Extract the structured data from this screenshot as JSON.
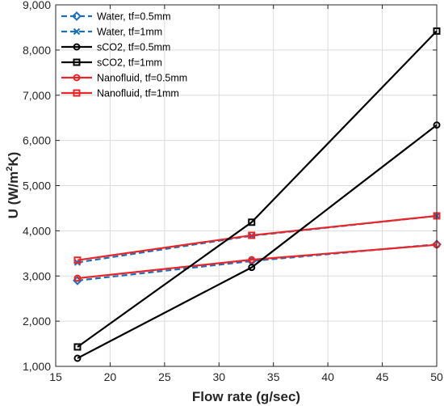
{
  "chart_data": {
    "type": "line",
    "xlabel": "Flow rate (g/sec)",
    "ylabel_base": "U (W/m",
    "ylabel_sup": "2",
    "ylabel_tail": "K)",
    "xlim": [
      15,
      50
    ],
    "ylim": [
      1000,
      9000
    ],
    "xticks": [
      15,
      20,
      25,
      30,
      35,
      40,
      45,
      50
    ],
    "xtick_labels": [
      "15",
      "20",
      "25",
      "30",
      "35",
      "40",
      "45",
      "50"
    ],
    "yticks": [
      1000,
      2000,
      3000,
      4000,
      5000,
      6000,
      7000,
      8000,
      9000
    ],
    "ytick_labels": [
      "1,000",
      "2,000",
      "3,000",
      "4,000",
      "5,000",
      "6,000",
      "7,000",
      "8,000",
      "9,000"
    ],
    "grid": true,
    "legend_position": "top-left",
    "series": [
      {
        "name": "Water, tf=0.5mm",
        "x": [
          17,
          33,
          50
        ],
        "y": [
          2900,
          3330,
          3700
        ],
        "color": "#1f6fb5",
        "dash": "dashed",
        "marker": "diamond"
      },
      {
        "name": "Water, tf=1mm",
        "x": [
          17,
          33,
          50
        ],
        "y": [
          3300,
          3890,
          4330
        ],
        "color": "#1f6fb5",
        "dash": "dashed",
        "marker": "x"
      },
      {
        "name": "sCO2, tf=0.5mm",
        "x": [
          17,
          33,
          50
        ],
        "y": [
          1180,
          3190,
          6340
        ],
        "color": "#000000",
        "dash": "solid",
        "marker": "circle"
      },
      {
        "name": "sCO2, tf=1mm",
        "x": [
          17,
          33,
          50
        ],
        "y": [
          1430,
          4190,
          8420
        ],
        "color": "#000000",
        "dash": "solid",
        "marker": "square"
      },
      {
        "name": "Nanofluid, tf=0.5mm",
        "x": [
          17,
          33,
          50
        ],
        "y": [
          2950,
          3360,
          3690
        ],
        "color": "#e8262a",
        "dash": "solid",
        "marker": "circle"
      },
      {
        "name": "Nanofluid, tf=1mm",
        "x": [
          17,
          33,
          50
        ],
        "y": [
          3350,
          3900,
          4330
        ],
        "color": "#e8262a",
        "dash": "solid",
        "marker": "square"
      }
    ]
  }
}
